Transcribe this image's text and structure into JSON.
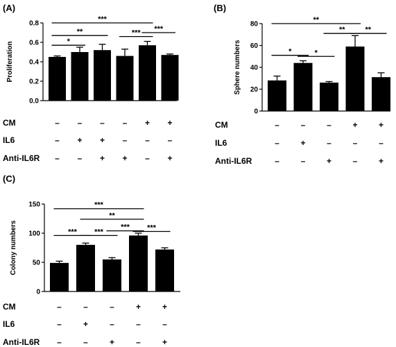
{
  "chart_data": [
    {
      "panel": "(A)",
      "type": "bar",
      "title": "",
      "xlabel": "",
      "ylabel": "Proliferation",
      "ylim": [
        0,
        0.8
      ],
      "yticks": [
        "0.0",
        "0.2",
        "0.4",
        "0.6",
        "0.8"
      ],
      "values": [
        0.45,
        0.5,
        0.52,
        0.46,
        0.57,
        0.47
      ],
      "errors": [
        0.01,
        0.05,
        0.06,
        0.07,
        0.04,
        0.01
      ],
      "conditions": [
        {
          "label": "CM",
          "marks": [
            "–",
            "–",
            "–",
            "–",
            "+",
            "+"
          ]
        },
        {
          "label": "IL6",
          "marks": [
            "–",
            "+",
            "+",
            "–",
            "–",
            "–"
          ]
        },
        {
          "label": "Anti-IL6R",
          "marks": [
            "–",
            "–",
            "+",
            "+",
            "–",
            "+"
          ]
        }
      ],
      "significance": [
        {
          "from": 0,
          "to": 4,
          "label": "***",
          "y": 0.8
        },
        {
          "from": 0,
          "to": 2,
          "label": "**",
          "y": 0.67
        },
        {
          "from": 0,
          "to": 1,
          "label": "*",
          "y": 0.57
        },
        {
          "from": 3,
          "to": 4,
          "label": "***",
          "y": 0.66
        },
        {
          "from": 4,
          "to": 5,
          "label": "***",
          "y": 0.7
        }
      ]
    },
    {
      "panel": "(B)",
      "type": "bar",
      "title": "",
      "xlabel": "",
      "ylabel": "Sphere numbers",
      "ylim": [
        0,
        80
      ],
      "yticks": [
        "0",
        "20",
        "40",
        "60",
        "80"
      ],
      "values": [
        28,
        44,
        26,
        59,
        31
      ],
      "errors": [
        4,
        2,
        1,
        10,
        4
      ],
      "conditions": [
        {
          "label": "CM",
          "marks": [
            "–",
            "–",
            "–",
            "+",
            "+"
          ]
        },
        {
          "label": "IL6",
          "marks": [
            "–",
            "+",
            "–",
            "–",
            "–"
          ]
        },
        {
          "label": "Anti-IL6R",
          "marks": [
            "–",
            "–",
            "+",
            "–",
            "+"
          ]
        }
      ],
      "significance": [
        {
          "from": 0,
          "to": 3,
          "label": "**",
          "y": 80
        },
        {
          "from": 0,
          "to": 1,
          "label": "*",
          "y": 51
        },
        {
          "from": 1,
          "to": 2,
          "label": "*",
          "y": 50
        },
        {
          "from": 2,
          "to": 3,
          "label": "**",
          "y": 71
        },
        {
          "from": 3,
          "to": 4,
          "label": "**",
          "y": 71
        }
      ]
    },
    {
      "panel": "(C)",
      "type": "bar",
      "title": "",
      "xlabel": "",
      "ylabel": "Colony numbers",
      "ylim": [
        0,
        150
      ],
      "yticks": [
        "0",
        "50",
        "100",
        "150"
      ],
      "values": [
        49,
        80,
        55,
        96,
        72
      ],
      "errors": [
        3,
        3,
        3,
        4,
        3
      ],
      "conditions": [
        {
          "label": "CM",
          "marks": [
            "–",
            "–",
            "–",
            "+",
            "+"
          ]
        },
        {
          "label": "IL6",
          "marks": [
            "–",
            "+",
            "–",
            "–",
            "–"
          ]
        },
        {
          "label": "Anti-IL6R",
          "marks": [
            "–",
            "–",
            "+",
            "–",
            "+"
          ]
        }
      ],
      "significance": [
        {
          "from": 0,
          "to": 3,
          "label": "***",
          "y": 142
        },
        {
          "from": 1,
          "to": 3,
          "label": "**",
          "y": 124
        },
        {
          "from": 0,
          "to": 1,
          "label": "***",
          "y": 96
        },
        {
          "from": 1,
          "to": 2,
          "label": "***",
          "y": 96
        },
        {
          "from": 2,
          "to": 3,
          "label": "***",
          "y": 104
        },
        {
          "from": 3,
          "to": 4,
          "label": "***",
          "y": 103
        }
      ]
    }
  ]
}
